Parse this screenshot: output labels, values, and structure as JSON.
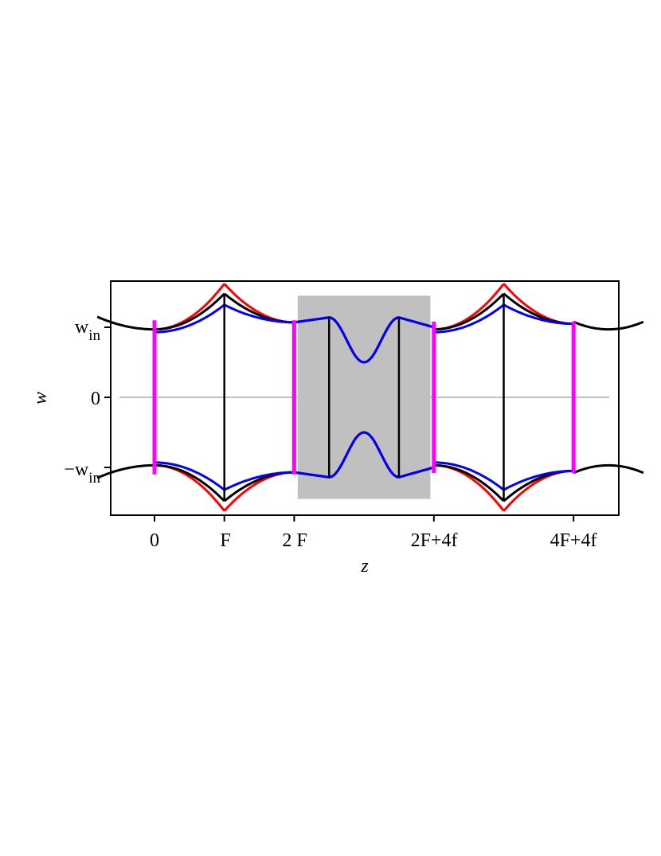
{
  "chart_data": {
    "type": "line",
    "xlabel": "z",
    "ylabel": "w",
    "x_tick_labels": [
      "0",
      "F",
      "2 F",
      "2F+4f",
      "4F+4f"
    ],
    "y_tick_labels": {
      "top": {
        "base": "w",
        "sub": "in"
      },
      "zero": "0",
      "bottom": {
        "sign": "−",
        "base": "w",
        "sub": "in"
      }
    },
    "xlim": [
      -0.9,
      7.7
    ],
    "ylim": [
      -1.55,
      1.65
    ],
    "shaded_region": {
      "x": [
        2.05,
        3.95
      ],
      "y": [
        -1.45,
        1.45
      ],
      "color": "#c0c0c0"
    },
    "lens_planes_magenta": [
      0,
      2,
      4,
      6
    ],
    "thin_lenses_black": [
      1,
      2.5,
      3.5,
      5
    ],
    "colors": {
      "red": "#ff0000",
      "black": "#000000",
      "blue": "#0000ff",
      "magenta": "#ff00ff",
      "zero_line": "#c0c0c0"
    }
  }
}
